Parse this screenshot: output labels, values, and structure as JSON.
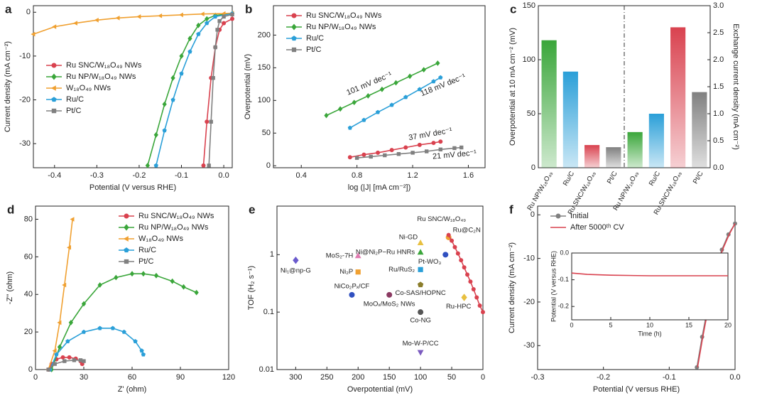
{
  "chart_data": [
    {
      "type": "line",
      "panel": "a",
      "xlabel": "Potential (V versus RHE)",
      "ylabel": "Current density (mA cm⁻²)",
      "xlim": [
        -0.45,
        0.02
      ],
      "ylim": [
        -35.5,
        1.5
      ],
      "xticks": [
        -0.4,
        -0.3,
        -0.2,
        -0.1,
        {
          "value": 0,
          "label": "0.0"
        }
      ],
      "yticks": [
        -30,
        -20,
        -10,
        0
      ],
      "legend": "center left",
      "series": [
        {
          "name": "Ru SNC/W₁₈O₄₉ NWs",
          "color": "#d9424f",
          "marker": "circle",
          "x": [
            -0.048,
            -0.04,
            -0.03,
            -0.02,
            -0.01,
            0,
            0.02
          ],
          "values": [
            -35,
            -25,
            -15,
            -8,
            -4,
            -2.5,
            -1.5
          ]
        },
        {
          "name": "Ru NP/W₁₈O₄₉ NWs",
          "color": "#3aa63a",
          "marker": "diamond",
          "x": [
            -0.18,
            -0.16,
            -0.14,
            -0.12,
            -0.1,
            -0.08,
            -0.06,
            -0.04,
            -0.02,
            0.02
          ],
          "values": [
            -35,
            -28,
            -21,
            -15,
            -10,
            -6,
            -3,
            -1.5,
            -0.7,
            -0.3
          ]
        },
        {
          "name": "W₁₈O₄₉ NWs",
          "color": "#f0a030",
          "marker": "triangle-left",
          "x": [
            -0.45,
            -0.4,
            -0.35,
            -0.3,
            -0.25,
            -0.2,
            -0.15,
            -0.1,
            -0.05,
            0,
            0.02
          ],
          "values": [
            -5,
            -3.3,
            -2.5,
            -1.8,
            -1.3,
            -1,
            -0.8,
            -0.6,
            -0.4,
            -0.3,
            -0.2
          ]
        },
        {
          "name": "Ru/C",
          "color": "#2a9fd8",
          "marker": "pentagon",
          "x": [
            -0.16,
            -0.14,
            -0.12,
            -0.1,
            -0.08,
            -0.06,
            -0.04,
            -0.02,
            0.02
          ],
          "values": [
            -35,
            -27,
            -20,
            -14,
            -9,
            -5,
            -2.5,
            -1,
            -0.3
          ]
        },
        {
          "name": "Pt/C",
          "color": "#808080",
          "marker": "square",
          "x": [
            -0.035,
            -0.03,
            -0.025,
            -0.02,
            -0.015,
            -0.01,
            0,
            0.02
          ],
          "values": [
            -35,
            -25,
            -15,
            -8,
            -4,
            -2,
            -1,
            -0.5
          ]
        }
      ]
    },
    {
      "type": "line",
      "panel": "b",
      "xlabel": "log (|J| [mA cm⁻²])",
      "ylabel": "Overpotential (mV)",
      "xlim": [
        0.2,
        1.72
      ],
      "ylim": [
        -3,
        245
      ],
      "xticks": [
        0.4,
        0.8,
        1.2,
        1.6
      ],
      "yticks": [
        0,
        50,
        100,
        150,
        200
      ],
      "legend": "upper left",
      "annotations": [
        {
          "text": "101 mV dec⁻¹",
          "color": "#3aa63a"
        },
        {
          "text": "118 mV dec⁻¹",
          "color": "#2a9fd8"
        },
        {
          "text": "37 mV dec⁻¹",
          "color": "#d9424f"
        },
        {
          "text": "21 mV dec⁻¹",
          "color": "#808080"
        }
      ],
      "series": [
        {
          "name": "Ru SNC/W₁₈O₄₉ NWs",
          "color": "#d9424f",
          "marker": "circle",
          "x": [
            0.75,
            0.85,
            0.95,
            1.05,
            1.15,
            1.25,
            1.35,
            1.4
          ],
          "values": [
            13,
            17,
            20,
            24,
            28,
            32,
            35,
            37
          ]
        },
        {
          "name": "Ru NP/W₁₈O₄₉ NWs",
          "color": "#3aa63a",
          "marker": "diamond",
          "x": [
            0.58,
            0.68,
            0.78,
            0.88,
            0.98,
            1.08,
            1.18,
            1.28,
            1.38
          ],
          "values": [
            77,
            87,
            97,
            107,
            117,
            127,
            137,
            147,
            157
          ]
        },
        {
          "name": "Ru/C",
          "color": "#2a9fd8",
          "marker": "pentagon",
          "x": [
            0.75,
            0.85,
            0.95,
            1.05,
            1.15,
            1.25,
            1.35,
            1.4
          ],
          "values": [
            58,
            70,
            82,
            93,
            105,
            117,
            129,
            135
          ]
        },
        {
          "name": "Pt/C",
          "color": "#808080",
          "marker": "square",
          "x": [
            0.8,
            0.9,
            1.0,
            1.1,
            1.2,
            1.3,
            1.4,
            1.5,
            1.55
          ],
          "values": [
            12,
            14,
            16,
            18,
            20,
            22,
            25,
            27,
            28
          ]
        }
      ]
    },
    {
      "type": "bar",
      "panel": "c",
      "ylabel": "Overpotential at 10 mA cm⁻² (mV)",
      "y2label": "Exchange current density (mA cm⁻²)",
      "ylim": [
        0,
        150
      ],
      "yticks": [
        0,
        50,
        100,
        150
      ],
      "y2lim": [
        0,
        3
      ],
      "y2ticks": [
        {
          "value": 0,
          "label": "0.0"
        },
        0.5,
        {
          "value": 1,
          "label": "1.0"
        },
        1.5,
        {
          "value": 2,
          "label": "2.0"
        },
        2.5,
        {
          "value": 3,
          "label": "3.0"
        }
      ],
      "groups": [
        {
          "axis": "y",
          "categories": [
            "Ru NP/W₁₈O₄₉",
            "Ru/C",
            "Ru SNC/W₁₈O₄₉",
            "Pt/C"
          ],
          "values": [
            118,
            89,
            21,
            19
          ],
          "colors": [
            "#3aa63a",
            "#2a9fd8",
            "#d9424f",
            "#808080"
          ]
        },
        {
          "axis": "y2",
          "categories": [
            "Ru NP/W₁₈O₄₉",
            "Ru/C",
            "Ru SNC/W₁₈O₄₉",
            "Pt/C"
          ],
          "values": [
            0.66,
            1.0,
            2.6,
            1.4
          ],
          "colors": [
            "#3aa63a",
            "#2a9fd8",
            "#d9424f",
            "#808080"
          ]
        }
      ]
    },
    {
      "type": "line",
      "panel": "d",
      "xlabel": "Z' (ohm)",
      "ylabel": "-Z'' (ohm)",
      "xlim": [
        0,
        120
      ],
      "ylim": [
        0,
        87
      ],
      "xticks": [
        0,
        30,
        60,
        90,
        120
      ],
      "yticks": [
        0,
        20,
        40,
        60,
        80
      ],
      "legend": "upper right",
      "series": [
        {
          "name": "Ru SNC/W₁₈O₄₉ NWs",
          "color": "#d9424f",
          "marker": "circle",
          "x": [
            8,
            10,
            13,
            17,
            21,
            25,
            28,
            29
          ],
          "values": [
            0,
            3,
            5.5,
            6.5,
            6.5,
            5.8,
            4.5,
            3
          ]
        },
        {
          "name": "Ru NP/W₁₈O₄₉ NWs",
          "color": "#3aa63a",
          "marker": "diamond",
          "x": [
            10,
            15,
            22,
            30,
            40,
            50,
            60,
            67,
            75,
            85,
            92,
            100
          ],
          "values": [
            0,
            12,
            25,
            35,
            45,
            49,
            51,
            51,
            50,
            47,
            44,
            41
          ]
        },
        {
          "name": "W₁₈O₄₉ NWs",
          "color": "#f0a030",
          "marker": "triangle-left",
          "x": [
            8,
            12,
            15,
            18,
            21,
            23
          ],
          "values": [
            0,
            10,
            25,
            45,
            65,
            80
          ]
        },
        {
          "name": "Ru/C",
          "color": "#2a9fd8",
          "marker": "pentagon",
          "x": [
            9,
            13,
            20,
            30,
            40,
            48,
            55,
            62,
            66,
            67
          ],
          "values": [
            0,
            8,
            15,
            20,
            22,
            22,
            20,
            15,
            10,
            8
          ]
        },
        {
          "name": "Pt/C",
          "color": "#808080",
          "marker": "square",
          "x": [
            8,
            12,
            18,
            24,
            28,
            30
          ],
          "values": [
            0,
            3,
            4.5,
            5,
            5,
            4.5
          ]
        }
      ]
    },
    {
      "type": "line",
      "panel": "e",
      "xlabel": "Overpotential (mV)",
      "ylabel": "TOF (H₂ s⁻¹)",
      "ylog": true,
      "point_labels": true,
      "xlim": [
        330,
        0
      ],
      "ylim": [
        0.01,
        7
      ],
      "xticks": [
        300,
        250,
        200,
        150,
        100,
        50,
        0
      ],
      "yticks": [
        0.01,
        0.1,
        1
      ],
      "series": [
        {
          "name": "Ni₁@np-G",
          "color": "#6a5acd",
          "marker": "diamond",
          "x": [
            300
          ],
          "values": [
            0.8
          ]
        },
        {
          "name": "MoS₂-7H",
          "color": "#e07ab0",
          "marker": "triangle",
          "x": [
            200
          ],
          "values": [
            0.95
          ]
        },
        {
          "name": "Ni@Ni₂P−Ru HNRs",
          "color": "#3aa63a",
          "marker": "triangle",
          "x": [
            100
          ],
          "values": [
            1.1
          ]
        },
        {
          "name": "Ni-GD",
          "color": "#e8c040",
          "marker": "triangle",
          "x": [
            100
          ],
          "values": [
            1.6
          ]
        },
        {
          "name": "Ru@C₂N",
          "color": "#f0a030",
          "marker": "circle",
          "x": [
            55
          ],
          "values": [
            2.0
          ]
        },
        {
          "name": "Ni₂P",
          "color": "#f0a030",
          "marker": "square",
          "x": [
            200
          ],
          "values": [
            0.5
          ]
        },
        {
          "name": "Ru/RuS₂",
          "color": "#2a9fd8",
          "marker": "square",
          "x": [
            100
          ],
          "values": [
            0.55
          ]
        },
        {
          "name": "Pt-WO₃",
          "color": "#3050c0",
          "marker": "circle",
          "x": [
            60
          ],
          "values": [
            1.0
          ]
        },
        {
          "name": "NiCo₂Pₓ/CF",
          "color": "#3050c0",
          "marker": "circle",
          "x": [
            210
          ],
          "values": [
            0.2
          ]
        },
        {
          "name": "MoOₓ/MoS₂ NWs",
          "color": "#8b3a62",
          "marker": "circle",
          "x": [
            150
          ],
          "values": [
            0.2
          ]
        },
        {
          "name": "Co-SAS/HOPNC",
          "color": "#8b7d2b",
          "marker": "pentagon",
          "x": [
            100
          ],
          "values": [
            0.3
          ]
        },
        {
          "name": "Co-NG",
          "color": "#555555",
          "marker": "circle",
          "x": [
            100
          ],
          "values": [
            0.1
          ]
        },
        {
          "name": "Ru-HPC",
          "color": "#e8c040",
          "marker": "diamond",
          "x": [
            30
          ],
          "values": [
            0.18
          ]
        },
        {
          "name": "Mo-W-P/CC",
          "color": "#7b5bbf",
          "marker": "triangle-down",
          "x": [
            100
          ],
          "values": [
            0.02
          ]
        },
        {
          "name": "Ru SNC/W₁₈O₄₉",
          "color": "#d9424f",
          "marker": "circle",
          "x": [
            55,
            50,
            45,
            40,
            35,
            30,
            25,
            20,
            15,
            10,
            5,
            0
          ],
          "values": [
            2.2,
            1.75,
            1.35,
            1.05,
            0.8,
            0.6,
            0.45,
            0.34,
            0.25,
            0.18,
            0.13,
            0.1
          ]
        }
      ]
    },
    {
      "type": "line",
      "panel": "f",
      "xlabel": "Potential (V versus RHE)",
      "ylabel": "Current density (mA cm⁻²)",
      "xlim": [
        -0.3,
        0
      ],
      "ylim": [
        -35.5,
        2
      ],
      "xticks": [
        -0.3,
        -0.2,
        -0.1,
        {
          "value": 0,
          "label": "0.0"
        }
      ],
      "yticks": [
        -30,
        -20,
        -10,
        0
      ],
      "legend": "upper left",
      "series": [
        {
          "name": "Initial",
          "color": "#808080",
          "marker": "circle",
          "x": [
            -0.058,
            -0.05,
            -0.04,
            -0.03,
            -0.02,
            -0.01,
            0
          ],
          "values": [
            -35,
            -28,
            -20,
            -13,
            -8,
            -4.5,
            -2
          ]
        },
        {
          "name": "After 5000ᵗʰ CV",
          "color": "#d9424f",
          "marker": "none",
          "x": [
            -0.057,
            -0.049,
            -0.039,
            -0.029,
            -0.019,
            -0.009,
            0
          ],
          "values": [
            -35,
            -28,
            -20,
            -13,
            -8,
            -4.5,
            -2
          ]
        }
      ]
    },
    {
      "type": "line",
      "inset": true,
      "xlabel": "Time (h)",
      "ylabel": "Potential (V versus RHE)",
      "xlim": [
        0,
        20
      ],
      "ylim": [
        -0.25,
        0
      ],
      "xticks": [
        0,
        5,
        10,
        15,
        20
      ],
      "yticks": [
        {
          "value": 0,
          "label": "0.0"
        },
        -0.1,
        -0.2
      ],
      "series": [
        {
          "color": "#d9424f",
          "x": [
            0,
            2,
            5,
            10,
            15,
            20
          ],
          "values": [
            -0.075,
            -0.08,
            -0.083,
            -0.085,
            -0.085,
            -0.085
          ]
        }
      ]
    }
  ]
}
